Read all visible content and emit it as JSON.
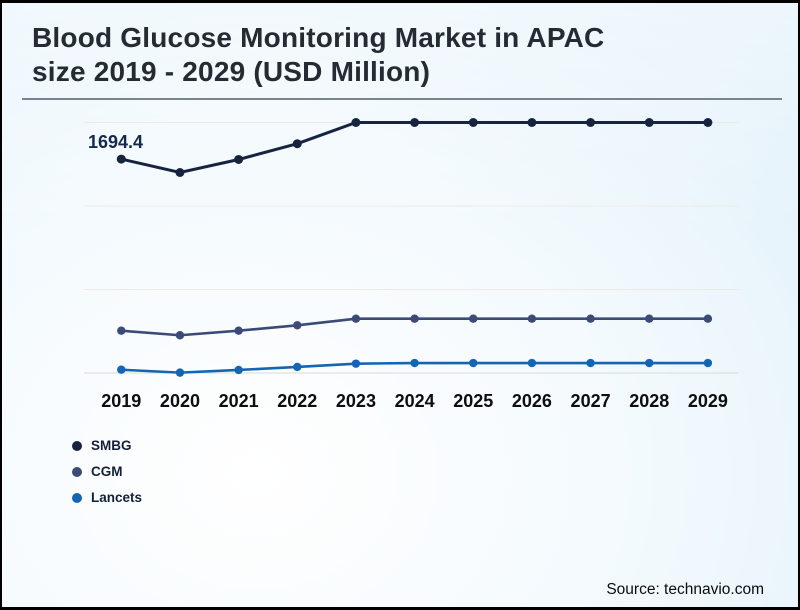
{
  "header": {
    "title_line1": "Blood Glucose Monitoring Market in APAC",
    "title_line2": "size 2019 - 2029 (USD Million)"
  },
  "footer": {
    "source": "Source: technavio.com"
  },
  "chart_data": {
    "type": "line",
    "title": "Blood Glucose Monitoring Market in APAC size 2019 - 2029 (USD Million)",
    "categories": [
      "2019",
      "2020",
      "2021",
      "2022",
      "2023",
      "2024",
      "2025",
      "2026",
      "2027",
      "2028",
      "2029"
    ],
    "series": [
      {
        "name": "SMBG",
        "color": "#16243f",
        "values": [
          1694.4,
          1588,
          1691,
          1816,
          1984,
          1984,
          1984,
          1984,
          1984,
          1984,
          1984
        ]
      },
      {
        "name": "CGM",
        "color": "#3b4a77",
        "values": [
          335,
          299,
          335,
          378,
          430,
          430,
          430,
          430,
          430,
          430,
          430
        ]
      },
      {
        "name": "Lancets",
        "color": "#1565b5",
        "values": [
          26,
          3,
          24,
          48,
          74,
          79,
          79,
          79,
          79,
          79,
          79
        ]
      }
    ],
    "data_label": {
      "series": "SMBG",
      "category": "2019",
      "text": "1694.4"
    },
    "xlabel": "",
    "ylabel": "",
    "ylim": [
      0,
      1984
    ],
    "gridlines": true,
    "gridline_count": 4,
    "legend_position": "bottom-left"
  }
}
